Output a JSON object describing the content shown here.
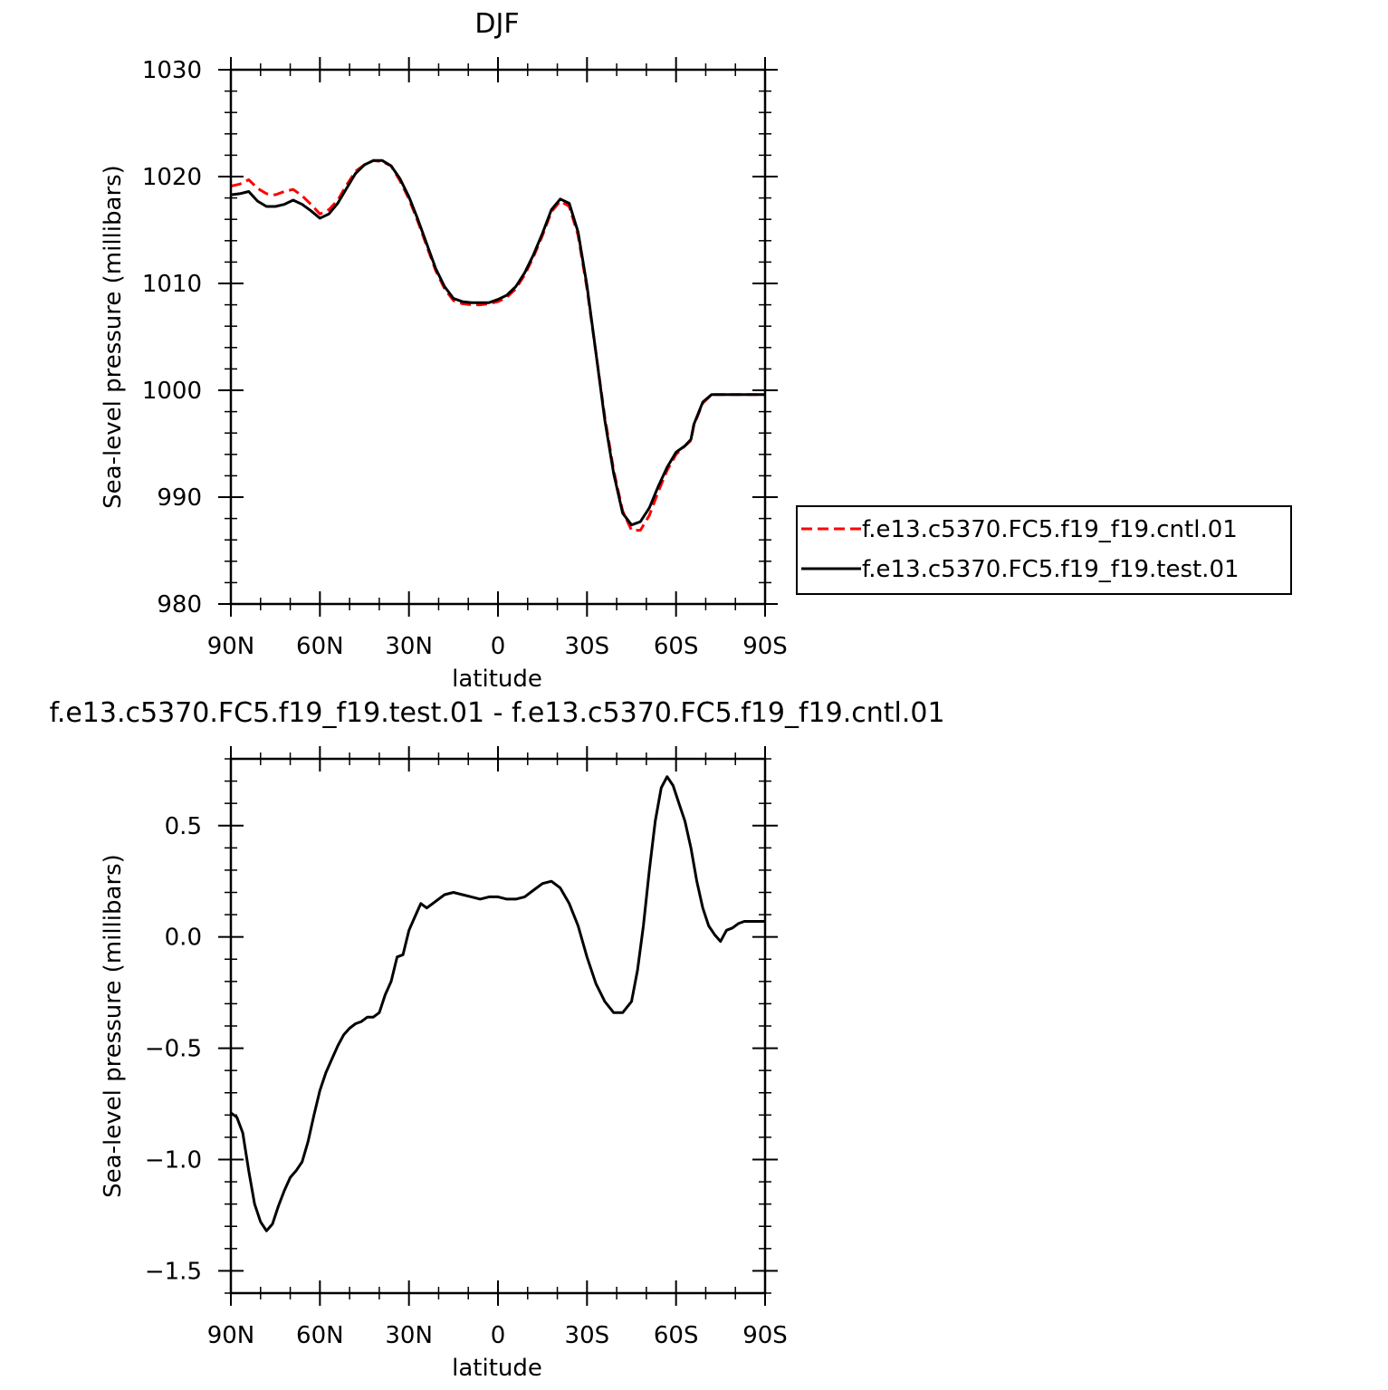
{
  "chart_data": [
    {
      "type": "line",
      "title": "DJF",
      "xlabel": "latitude",
      "ylabel": "Sea-level pressure (millibars)",
      "x_ticks": [
        "90N",
        "60N",
        "30N",
        "0",
        "30S",
        "60S",
        "90S"
      ],
      "xlim": [
        90,
        -90
      ],
      "ylim": [
        980,
        1030
      ],
      "y_ticks": [
        "980",
        "990",
        "1000",
        "1010",
        "1020",
        "1030"
      ],
      "y_tick_values": [
        980,
        990,
        1000,
        1010,
        1020,
        1030
      ],
      "grid": false,
      "legend_position": "right, beside lower part of plot",
      "series": [
        {
          "name": "f.e13.c5370.FC5.f19_f19.cntl.01",
          "color": "#ff0000",
          "dash": "dashed",
          "x": [
            90,
            87,
            84,
            81,
            78,
            75,
            72,
            69,
            66,
            63,
            60,
            57,
            54,
            51,
            48,
            45,
            42,
            39,
            36,
            33,
            30,
            27,
            24,
            21,
            18,
            15,
            12,
            9,
            6,
            3,
            0,
            -3,
            -6,
            -9,
            -12,
            -15,
            -18,
            -21,
            -24,
            -27,
            -30,
            -33,
            -36,
            -39,
            -42,
            -45,
            -48,
            -51,
            -54,
            -57,
            -60,
            -63,
            -65,
            -66,
            -69,
            -72,
            -75,
            -78,
            -81,
            -84,
            -87,
            -90
          ],
          "values": [
            1019.1,
            1019.3,
            1019.7,
            1018.9,
            1018.4,
            1018.3,
            1018.6,
            1018.8,
            1018.2,
            1017.4,
            1016.5,
            1016.9,
            1017.8,
            1019.2,
            1020.5,
            1021.1,
            1021.5,
            1021.4,
            1021.0,
            1019.6,
            1017.9,
            1015.8,
            1013.5,
            1011.2,
            1009.5,
            1008.4,
            1008.1,
            1008.0,
            1008.0,
            1008.1,
            1008.3,
            1008.7,
            1009.5,
            1010.8,
            1012.5,
            1014.5,
            1016.7,
            1017.7,
            1017.2,
            1014.5,
            1009.5,
            1003.5,
            997.5,
            992.5,
            988.7,
            986.9,
            986.9,
            988.3,
            990.5,
            992.5,
            994.0,
            994.8,
            995.3,
            996.7,
            998.8,
            999.6,
            999.6,
            999.6,
            999.6,
            999.6,
            999.6,
            999.6
          ]
        },
        {
          "name": "f.e13.c5370.FC5.f19_f19.test.01",
          "color": "#000000",
          "dash": "solid",
          "x": [
            90,
            87,
            84,
            81,
            78,
            75,
            72,
            69,
            66,
            63,
            60,
            57,
            54,
            51,
            48,
            45,
            42,
            39,
            36,
            33,
            30,
            27,
            24,
            21,
            18,
            15,
            12,
            9,
            6,
            3,
            0,
            -3,
            -6,
            -9,
            -12,
            -15,
            -18,
            -21,
            -24,
            -27,
            -30,
            -33,
            -36,
            -39,
            -42,
            -45,
            -48,
            -51,
            -54,
            -57,
            -60,
            -63,
            -65,
            -66,
            -69,
            -72,
            -75,
            -78,
            -81,
            -84,
            -87,
            -90
          ],
          "values": [
            1018.3,
            1018.4,
            1018.6,
            1017.7,
            1017.2,
            1017.2,
            1017.4,
            1017.8,
            1017.4,
            1016.8,
            1016.1,
            1016.5,
            1017.5,
            1018.9,
            1020.3,
            1021.1,
            1021.5,
            1021.5,
            1021.0,
            1019.8,
            1018.1,
            1016.0,
            1013.7,
            1011.4,
            1009.7,
            1008.6,
            1008.3,
            1008.2,
            1008.2,
            1008.2,
            1008.5,
            1008.9,
            1009.7,
            1011.0,
            1012.7,
            1014.7,
            1016.9,
            1017.9,
            1017.5,
            1014.8,
            1009.8,
            1003.5,
            997.2,
            992.2,
            988.5,
            987.4,
            987.7,
            989.0,
            991.0,
            992.8,
            994.2,
            994.8,
            995.4,
            996.8,
            998.9,
            999.6,
            999.6,
            999.6,
            999.6,
            999.6,
            999.6,
            999.6
          ]
        }
      ]
    },
    {
      "type": "line",
      "title": "f.e13.c5370.FC5.f19_f19.test.01 - f.e13.c5370.FC5.f19_f19.cntl.01",
      "xlabel": "latitude",
      "ylabel": "Sea-level pressure (millibars)",
      "x_ticks": [
        "90N",
        "60N",
        "30N",
        "0",
        "30S",
        "60S",
        "90S"
      ],
      "xlim": [
        90,
        -90
      ],
      "ylim": [
        -1.6,
        0.8
      ],
      "y_ticks": [
        "−1.5",
        "−1.0",
        "−0.5",
        "0.0",
        "0.5"
      ],
      "y_tick_values": [
        -1.5,
        -1.0,
        -0.5,
        0.0,
        0.5
      ],
      "grid": false,
      "series": [
        {
          "color": "#000000",
          "dash": "solid",
          "x": [
            90,
            88,
            86,
            84,
            82,
            80,
            78,
            76,
            74,
            72,
            70,
            68,
            66,
            64,
            62,
            60,
            58,
            56,
            54,
            52,
            50,
            48,
            46,
            44,
            42,
            40,
            38,
            36,
            34,
            32,
            30,
            28,
            26,
            24,
            22,
            20,
            18,
            15,
            12,
            9,
            6,
            3,
            0,
            -3,
            -6,
            -9,
            -12,
            -15,
            -18,
            -21,
            -24,
            -27,
            -30,
            -33,
            -36,
            -39,
            -42,
            -45,
            -47,
            -49,
            -51,
            -53,
            -55,
            -57,
            -59,
            -61,
            -63,
            -65,
            -67,
            -69,
            -71,
            -73,
            -75,
            -77,
            -79,
            -81,
            -83,
            -85,
            -87,
            -89,
            -90
          ],
          "values": [
            -0.79,
            -0.81,
            -0.88,
            -1.05,
            -1.2,
            -1.28,
            -1.32,
            -1.29,
            -1.21,
            -1.14,
            -1.08,
            -1.05,
            -1.01,
            -0.92,
            -0.8,
            -0.69,
            -0.61,
            -0.55,
            -0.49,
            -0.44,
            -0.41,
            -0.39,
            -0.38,
            -0.36,
            -0.36,
            -0.34,
            -0.26,
            -0.2,
            -0.09,
            -0.08,
            0.03,
            0.09,
            0.15,
            0.13,
            0.15,
            0.17,
            0.19,
            0.2,
            0.19,
            0.18,
            0.17,
            0.18,
            0.18,
            0.17,
            0.17,
            0.18,
            0.21,
            0.24,
            0.25,
            0.22,
            0.15,
            0.05,
            -0.09,
            -0.21,
            -0.29,
            -0.34,
            -0.34,
            -0.29,
            -0.15,
            0.05,
            0.3,
            0.52,
            0.67,
            0.72,
            0.68,
            0.6,
            0.52,
            0.4,
            0.25,
            0.13,
            0.05,
            0.01,
            -0.02,
            0.03,
            0.04,
            0.06,
            0.07,
            0.07,
            0.07,
            0.07,
            0.07
          ]
        }
      ]
    }
  ]
}
